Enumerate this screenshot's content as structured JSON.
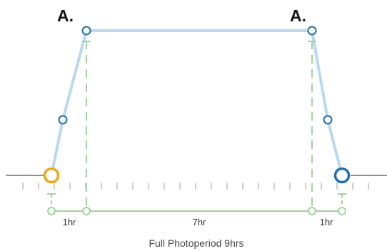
{
  "marker_labels": {
    "left": "A.",
    "right": "A."
  },
  "durations": {
    "ramp_up": "1hr",
    "plateau": "7hr",
    "ramp_down": "1hr"
  },
  "total_label": "Full Photoperiod 9hrs",
  "colors": {
    "ramp_line": "#b9d9ee",
    "node_stroke": "#1f6fb2",
    "start_node": "#f2a516",
    "end_node": "#1f6fb2",
    "bracket": "#9fd39b",
    "baseline": "#8f8f8f",
    "ticks": "#cfcfcf"
  }
}
